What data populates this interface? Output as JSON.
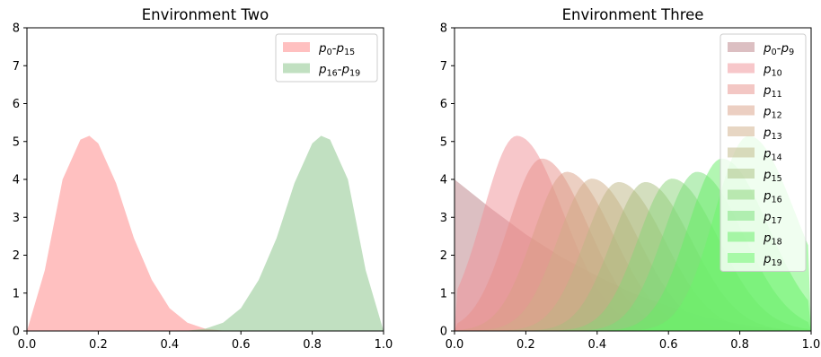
{
  "chart_data": [
    {
      "type": "area",
      "title": "Environment Two",
      "xlim": [
        0.0,
        1.0
      ],
      "ylim": [
        0,
        8
      ],
      "x_ticks": [
        "0.0",
        "0.2",
        "0.4",
        "0.6",
        "0.8",
        "1.0"
      ],
      "y_ticks": [
        "0",
        "1",
        "2",
        "3",
        "4",
        "5",
        "6",
        "7",
        "8"
      ],
      "legend_placement": "upper-right",
      "series": [
        {
          "name": "p0-p15",
          "label_base": "p",
          "label_sub1": "0",
          "label_sep": "-p",
          "label_sub2": "15",
          "color": "#ff9999",
          "alpha": 0.62,
          "x": [
            0.0,
            0.05,
            0.1,
            0.15,
            0.175,
            0.2,
            0.25,
            0.3,
            0.35,
            0.4,
            0.45,
            0.5,
            0.55,
            0.6,
            0.65,
            0.7,
            0.75,
            0.8,
            0.85,
            0.9,
            0.95,
            1.0
          ],
          "values": [
            0,
            1.6,
            4.0,
            5.05,
            5.15,
            4.95,
            3.9,
            2.45,
            1.35,
            0.6,
            0.22,
            0.06,
            0.01,
            0,
            0,
            0,
            0,
            0,
            0,
            0,
            0,
            0
          ]
        },
        {
          "name": "p16-p19",
          "label_base": "p",
          "label_sub1": "16",
          "label_sep": "-p",
          "label_sub2": "19",
          "color": "#88c488",
          "alpha": 0.52,
          "x": [
            0.0,
            0.05,
            0.1,
            0.15,
            0.2,
            0.25,
            0.3,
            0.35,
            0.4,
            0.45,
            0.5,
            0.55,
            0.6,
            0.65,
            0.7,
            0.75,
            0.8,
            0.825,
            0.85,
            0.9,
            0.95,
            1.0
          ],
          "values": [
            0,
            0,
            0,
            0,
            0,
            0,
            0,
            0,
            0,
            0.01,
            0.06,
            0.22,
            0.6,
            1.35,
            2.45,
            3.9,
            4.95,
            5.15,
            5.05,
            4.0,
            1.6,
            0
          ]
        }
      ]
    },
    {
      "type": "area",
      "title": "Environment Three",
      "xlim": [
        0.0,
        1.0
      ],
      "ylim": [
        0,
        8
      ],
      "x_ticks": [
        "0.0",
        "0.2",
        "0.4",
        "0.6",
        "0.8",
        "1.0"
      ],
      "y_ticks": [
        "0",
        "1",
        "2",
        "3",
        "4",
        "5",
        "6",
        "7",
        "8"
      ],
      "legend_placement": "upper-right",
      "series": [
        {
          "name": "p0-p9",
          "label_base": "p",
          "label_sub1": "0",
          "label_sep": "-p",
          "label_sub2": "9",
          "color": "#c08a90",
          "alpha": 0.55,
          "x": [
            0.0,
            0.1,
            0.2,
            0.3,
            0.4,
            0.5,
            0.6,
            0.7,
            0.8,
            0.9,
            1.0
          ],
          "values": [
            4.0,
            3.25,
            2.55,
            1.95,
            1.45,
            1.0,
            0.65,
            0.38,
            0.18,
            0.05,
            0.0
          ]
        },
        {
          "name": "p10",
          "label_base": "p",
          "label_sub1": "10",
          "color": "#f08f95",
          "alpha": 0.5,
          "peak_x": 0.175,
          "peak_y": 5.15
        },
        {
          "name": "p11",
          "label_base": "p",
          "label_sub1": "11",
          "color": "#e8908a",
          "alpha": 0.5,
          "peak_x": 0.245,
          "peak_y": 4.55
        },
        {
          "name": "p12",
          "label_base": "p",
          "label_sub1": "12",
          "color": "#d9a085",
          "alpha": 0.5,
          "peak_x": 0.315,
          "peak_y": 4.2
        },
        {
          "name": "p13",
          "label_base": "p",
          "label_sub1": "13",
          "color": "#cfae88",
          "alpha": 0.5,
          "peak_x": 0.385,
          "peak_y": 4.02
        },
        {
          "name": "p14",
          "label_base": "p",
          "label_sub1": "14",
          "color": "#bdb683",
          "alpha": 0.5,
          "peak_x": 0.46,
          "peak_y": 3.93
        },
        {
          "name": "p15",
          "label_base": "p",
          "label_sub1": "15",
          "color": "#a8bd7e",
          "alpha": 0.5,
          "peak_x": 0.535,
          "peak_y": 3.93
        },
        {
          "name": "p16",
          "label_base": "p",
          "label_sub1": "16",
          "color": "#8ad477",
          "alpha": 0.5,
          "peak_x": 0.61,
          "peak_y": 4.02
        },
        {
          "name": "p17",
          "label_base": "p",
          "label_sub1": "17",
          "color": "#78e078",
          "alpha": 0.5,
          "peak_x": 0.68,
          "peak_y": 4.2
        },
        {
          "name": "p18",
          "label_base": "p",
          "label_sub1": "18",
          "color": "#66ee66",
          "alpha": 0.5,
          "peak_x": 0.75,
          "peak_y": 4.55
        },
        {
          "name": "p19",
          "label_base": "p",
          "label_sub1": "19",
          "color": "#6af56a",
          "alpha": 0.5,
          "peak_x": 0.825,
          "peak_y": 5.15
        }
      ]
    }
  ]
}
